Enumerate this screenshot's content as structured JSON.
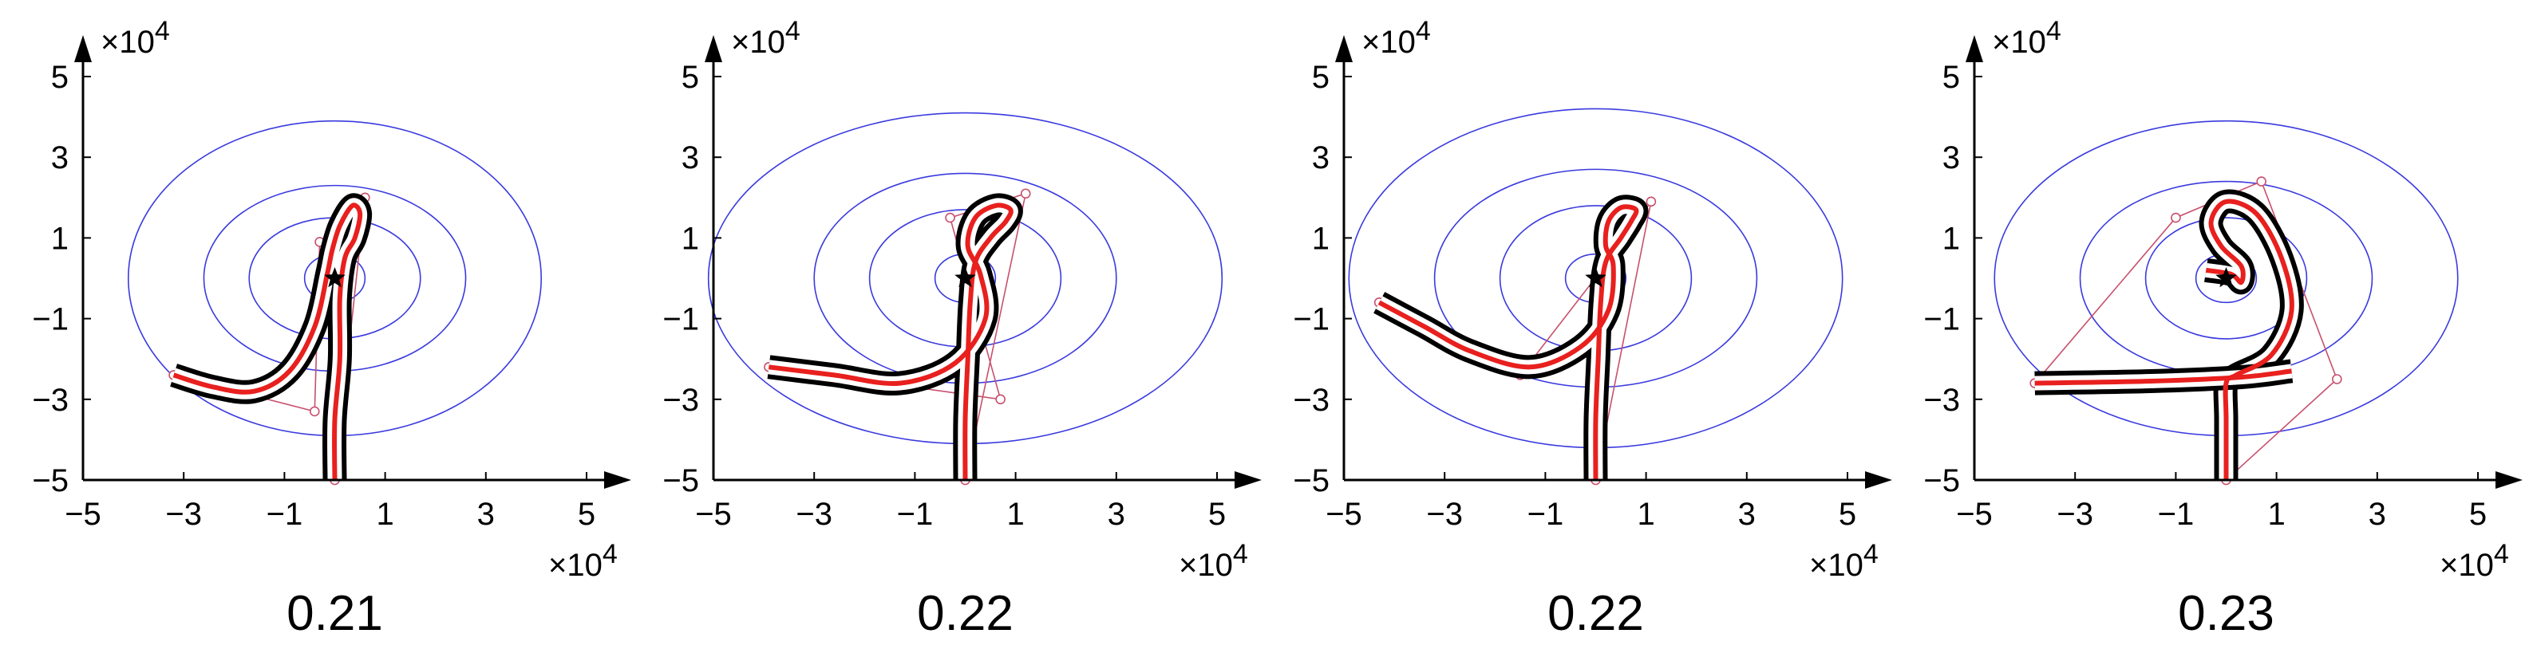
{
  "chart_data": [
    {
      "type": "line",
      "caption": "0.21",
      "x_ticks": [
        "−5",
        "−3",
        "−1",
        "1",
        "3",
        "5"
      ],
      "y_ticks": [
        "−5",
        "−3",
        "−1",
        "1",
        "3",
        "5"
      ],
      "x_exponent": "×10",
      "y_exponent": "×10",
      "exponent_power": "4",
      "xlim": [
        -5,
        5
      ],
      "ylim": [
        -5,
        5
      ],
      "scale": 10000,
      "grid": false,
      "legend": "none",
      "colors": {
        "axes": "#000000",
        "contours": "#3a3adf",
        "path": "#e8201e",
        "corridor": "#000000",
        "control_points": "#c8506e"
      },
      "marker": {
        "type": "star",
        "x": 0.0,
        "y": 0.0
      },
      "contours": [
        {
          "rx": 0.6,
          "ry": 0.6
        },
        {
          "rx": 1.7,
          "ry": 1.5
        },
        {
          "rx": 2.6,
          "ry": 2.3
        },
        {
          "rx": 4.1,
          "ry": 3.9
        }
      ],
      "control_points": [
        [
          0.0,
          -5.0
        ],
        [
          0.6,
          2.0
        ],
        [
          -0.3,
          0.9
        ],
        [
          -0.4,
          -3.3
        ],
        [
          -3.2,
          -2.4
        ]
      ],
      "path": [
        [
          0.0,
          -5.0
        ],
        [
          0.0,
          -3.5
        ],
        [
          0.1,
          -2.0
        ],
        [
          0.1,
          -0.5
        ],
        [
          0.2,
          0.5
        ],
        [
          0.4,
          1.0
        ],
        [
          0.5,
          1.6
        ],
        [
          0.35,
          1.8
        ],
        [
          0.1,
          1.3
        ],
        [
          -0.05,
          0.7
        ],
        [
          -0.15,
          0.1
        ],
        [
          -0.4,
          -1.2
        ],
        [
          -0.9,
          -2.3
        ],
        [
          -1.6,
          -2.8
        ],
        [
          -2.4,
          -2.7
        ],
        [
          -3.2,
          -2.4
        ]
      ]
    },
    {
      "type": "line",
      "caption": "0.22",
      "x_ticks": [
        "−5",
        "−3",
        "−1",
        "1",
        "3",
        "5"
      ],
      "y_ticks": [
        "−5",
        "−3",
        "−1",
        "1",
        "3",
        "5"
      ],
      "x_exponent": "×10",
      "y_exponent": "×10",
      "exponent_power": "4",
      "xlim": [
        -5,
        5
      ],
      "ylim": [
        -5,
        5
      ],
      "scale": 10000,
      "grid": false,
      "legend": "none",
      "colors": {
        "axes": "#000000",
        "contours": "#3a3adf",
        "path": "#e8201e",
        "corridor": "#000000",
        "control_points": "#c8506e"
      },
      "marker": {
        "type": "star",
        "x": 0.0,
        "y": 0.0
      },
      "contours": [
        {
          "rx": 0.6,
          "ry": 0.6
        },
        {
          "rx": 1.9,
          "ry": 1.7
        },
        {
          "rx": 3.0,
          "ry": 2.6
        },
        {
          "rx": 5.1,
          "ry": 4.1
        }
      ],
      "control_points": [
        [
          0.0,
          -5.0
        ],
        [
          1.2,
          2.1
        ],
        [
          -0.3,
          1.5
        ],
        [
          0.7,
          -3.0
        ],
        [
          -3.9,
          -2.2
        ]
      ],
      "path": [
        [
          0.0,
          -5.0
        ],
        [
          0.0,
          -3.5
        ],
        [
          0.05,
          -2.0
        ],
        [
          0.1,
          -0.6
        ],
        [
          0.2,
          0.4
        ],
        [
          0.5,
          1.0
        ],
        [
          0.8,
          1.4
        ],
        [
          0.9,
          1.7
        ],
        [
          0.6,
          1.8
        ],
        [
          0.2,
          1.5
        ],
        [
          0.05,
          0.8
        ],
        [
          0.3,
          0.1
        ],
        [
          0.4,
          -1.0
        ],
        [
          -0.2,
          -2.1
        ],
        [
          -1.3,
          -2.6
        ],
        [
          -2.6,
          -2.4
        ],
        [
          -3.9,
          -2.2
        ]
      ]
    },
    {
      "type": "line",
      "caption": "0.22",
      "x_ticks": [
        "−5",
        "−3",
        "−1",
        "1",
        "3",
        "5"
      ],
      "y_ticks": [
        "−5",
        "−3",
        "−1",
        "1",
        "3",
        "5"
      ],
      "x_exponent": "×10",
      "y_exponent": "×10",
      "exponent_power": "4",
      "xlim": [
        -5,
        5
      ],
      "ylim": [
        -5,
        5
      ],
      "scale": 10000,
      "grid": false,
      "legend": "none",
      "colors": {
        "axes": "#000000",
        "contours": "#3a3adf",
        "path": "#e8201e",
        "corridor": "#000000",
        "control_points": "#c8506e"
      },
      "marker": {
        "type": "star",
        "x": 0.0,
        "y": 0.0
      },
      "contours": [
        {
          "rx": 0.6,
          "ry": 0.6
        },
        {
          "rx": 1.9,
          "ry": 1.8
        },
        {
          "rx": 3.2,
          "ry": 2.7
        },
        {
          "rx": 4.9,
          "ry": 4.2
        }
      ],
      "control_points": [
        [
          0.0,
          -5.0
        ],
        [
          1.1,
          1.9
        ],
        [
          0.3,
          0.5
        ],
        [
          -1.5,
          -2.4
        ],
        [
          -4.3,
          -0.6
        ]
      ],
      "path": [
        [
          0.0,
          -5.0
        ],
        [
          0.0,
          -3.5
        ],
        [
          0.05,
          -2.0
        ],
        [
          0.1,
          -0.6
        ],
        [
          0.2,
          0.4
        ],
        [
          0.5,
          1.0
        ],
        [
          0.7,
          1.4
        ],
        [
          0.8,
          1.7
        ],
        [
          0.5,
          1.75
        ],
        [
          0.25,
          1.4
        ],
        [
          0.2,
          0.8
        ],
        [
          0.35,
          0.3
        ],
        [
          0.25,
          -0.8
        ],
        [
          -0.3,
          -1.7
        ],
        [
          -1.3,
          -2.2
        ],
        [
          -2.5,
          -1.8
        ],
        [
          -3.4,
          -1.2
        ],
        [
          -4.3,
          -0.6
        ]
      ]
    },
    {
      "type": "line",
      "caption": "0.23",
      "x_ticks": [
        "−5",
        "−3",
        "−1",
        "1",
        "3",
        "5"
      ],
      "y_ticks": [
        "−5",
        "−3",
        "−1",
        "1",
        "3",
        "5"
      ],
      "x_exponent": "×10",
      "y_exponent": "×10",
      "exponent_power": "4",
      "xlim": [
        -5,
        5
      ],
      "ylim": [
        -5,
        5
      ],
      "scale": 10000,
      "grid": false,
      "legend": "none",
      "colors": {
        "axes": "#000000",
        "contours": "#3a3adf",
        "path": "#e8201e",
        "corridor": "#000000",
        "control_points": "#c8506e"
      },
      "marker": {
        "type": "star",
        "x": 0.0,
        "y": 0.0
      },
      "contours": [
        {
          "rx": 0.6,
          "ry": 0.6
        },
        {
          "rx": 1.6,
          "ry": 1.5
        },
        {
          "rx": 2.9,
          "ry": 2.4
        },
        {
          "rx": 4.6,
          "ry": 3.9
        }
      ],
      "control_points": [
        [
          0.0,
          -5.0
        ],
        [
          2.2,
          -2.5
        ],
        [
          0.7,
          2.4
        ],
        [
          -1.0,
          1.5
        ],
        [
          -3.8,
          -2.6
        ]
      ],
      "path": [
        [
          0.0,
          -5.0
        ],
        [
          0.0,
          -3.5
        ],
        [
          0.0,
          -2.6
        ],
        [
          0.2,
          -2.4
        ],
        [
          0.9,
          -1.9
        ],
        [
          1.3,
          -0.8
        ],
        [
          1.1,
          0.5
        ],
        [
          0.6,
          1.6
        ],
        [
          0.0,
          1.9
        ],
        [
          -0.3,
          1.4
        ],
        [
          -0.1,
          0.8
        ],
        [
          0.3,
          0.3
        ],
        [
          0.3,
          -0.1
        ],
        [
          0.1,
          0.1
        ],
        [
          -0.4,
          0.2
        ]
      ],
      "path_branch": [
        [
          1.3,
          -2.3
        ],
        [
          0.3,
          -2.45
        ],
        [
          -1.5,
          -2.55
        ],
        [
          -3.8,
          -2.6
        ]
      ]
    }
  ]
}
